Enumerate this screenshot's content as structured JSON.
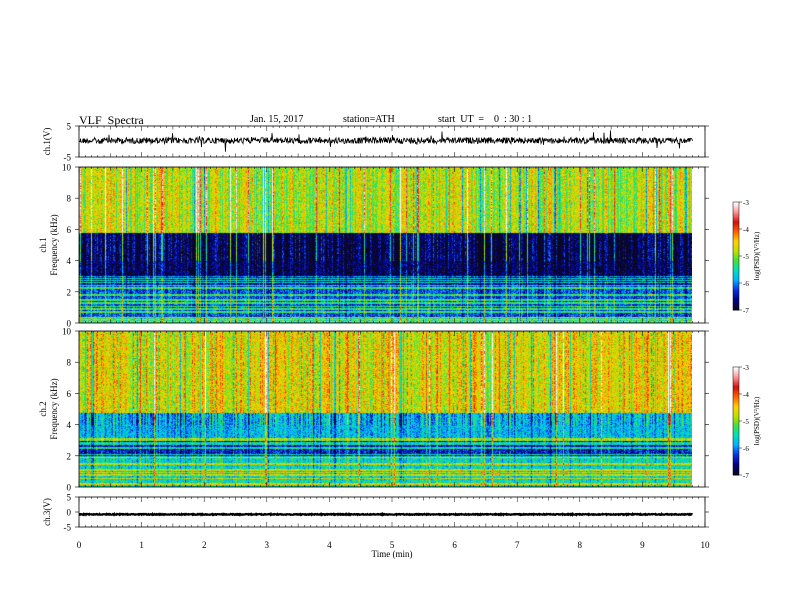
{
  "header": {
    "title": "VLF  Spectra",
    "date": "Jan. 15, 2017",
    "station": "station=ATH",
    "start": "start  UT  =    0  : 30 : 1"
  },
  "colors": {
    "spectrum_scale": [
      "#0a0820",
      "#000088",
      "#1030e0",
      "#00b0ff",
      "#00e0c0",
      "#40e040",
      "#c0e000",
      "#ffd000",
      "#ff6000",
      "#d01010",
      "#ff9090",
      "#ffffff"
    ],
    "trace": "#000000"
  },
  "chart_data": [
    {
      "type": "line",
      "name": "ch.1 waveform",
      "ylabel": "ch.1(V)",
      "ylim": [
        -5,
        5
      ],
      "yticks": [
        "5",
        "-5"
      ],
      "xlim": [
        0,
        10
      ],
      "x_extent": [
        0,
        9.8
      ],
      "baseline": 0.3,
      "noise_amplitude": 1.0,
      "grid": false
    },
    {
      "type": "heatmap",
      "name": "ch.1 spectrogram",
      "ylabel": "ch.1\nFrequency  (kHz)",
      "ylabel_lines": [
        "ch.1",
        "Frequency  (kHz)"
      ],
      "ylim": [
        0,
        10
      ],
      "yticks": [
        "0",
        "2",
        "4",
        "6",
        "8",
        "10"
      ],
      "xlim": [
        0,
        10
      ],
      "x_extent": [
        0,
        9.8
      ],
      "colorbar": {
        "label": "log(PSD)(V²/Hz)",
        "range": [
          -7,
          -3
        ],
        "ticks": [
          "-3",
          "-4",
          "-5",
          "-6",
          "-7"
        ]
      },
      "bands": [
        {
          "from": 0.0,
          "to": 0.4,
          "level": -5.5
        },
        {
          "from": 0.4,
          "to": 2.4,
          "level": -6.2
        },
        {
          "from": 2.4,
          "to": 3.0,
          "level": -6.5
        },
        {
          "from": 3.0,
          "to": 5.8,
          "level": -6.8
        },
        {
          "from": 5.8,
          "to": 10.0,
          "level": -4.8
        }
      ]
    },
    {
      "type": "heatmap",
      "name": "ch.2 spectrogram",
      "ylabel": "ch.2\nFrequency  (kHz)",
      "ylabel_lines": [
        "ch.2",
        "Frequency  (kHz)"
      ],
      "ylim": [
        0,
        10
      ],
      "yticks": [
        "0",
        "2",
        "4",
        "6",
        "8",
        "10"
      ],
      "xlim": [
        0,
        10
      ],
      "x_extent": [
        0,
        9.8
      ],
      "colorbar": {
        "label": "log(PSD)(V²/Hz)",
        "range": [
          -7,
          -3
        ],
        "ticks": [
          "-3",
          "-4",
          "-5",
          "-6",
          "-7"
        ]
      },
      "bands": [
        {
          "from": 0.0,
          "to": 0.5,
          "level": -5.5
        },
        {
          "from": 0.5,
          "to": 2.0,
          "level": -5.6
        },
        {
          "from": 2.0,
          "to": 3.0,
          "level": -6.4
        },
        {
          "from": 3.0,
          "to": 4.8,
          "level": -5.8
        },
        {
          "from": 4.8,
          "to": 10.0,
          "level": -4.6
        }
      ]
    },
    {
      "type": "line",
      "name": "ch.3 waveform",
      "ylabel": "ch.3(V)",
      "ylim": [
        -5,
        5
      ],
      "yticks": [
        "5",
        "0",
        "-5"
      ],
      "xlim": [
        0,
        10
      ],
      "x_extent": [
        0,
        9.8
      ],
      "baseline": -0.8,
      "noise_amplitude": 0.15,
      "grid": false,
      "xlabel": "Time  (min)",
      "xticks": [
        "0",
        "1",
        "2",
        "3",
        "4",
        "5",
        "6",
        "7",
        "8",
        "9",
        "10"
      ]
    }
  ]
}
